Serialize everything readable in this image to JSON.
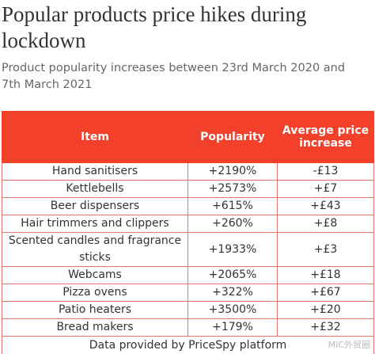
{
  "header": {
    "title": "Popular products price hikes during lockdown",
    "subtitle": "Product popularity increases between 23rd March 2020 and 7th March 2021"
  },
  "table": {
    "columns": [
      "Item",
      "Popularity",
      "Average price increase"
    ],
    "rows": [
      [
        "Hand sanitisers",
        "+2190%",
        "-£13"
      ],
      [
        "Kettlebells",
        "+2573%",
        "+£7"
      ],
      [
        "Beer dispensers",
        "+615%",
        "+£43"
      ],
      [
        "Hair trimmers and clippers",
        "+260%",
        "+£8"
      ],
      [
        "Scented candles and fragrance sticks",
        "+1933%",
        "+£3"
      ],
      [
        "Webcams",
        "+2065%",
        "+£18"
      ],
      [
        "Pizza ovens",
        "+322%",
        "+£67"
      ],
      [
        "Patio heaters",
        "+3500%",
        "+£20"
      ],
      [
        "Bread makers",
        "+179%",
        "+£32"
      ]
    ],
    "footer": "Data provided by PriceSpy platform"
  },
  "watermark": "MIC外贸圈"
}
